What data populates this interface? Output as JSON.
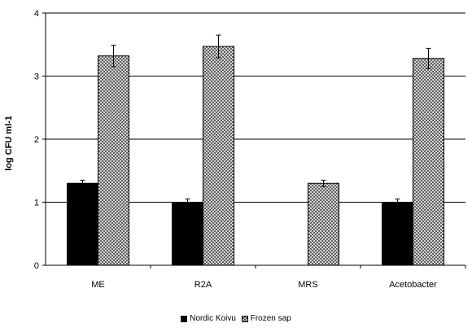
{
  "chart_data": {
    "type": "bar",
    "categories": [
      "ME",
      "R2A",
      "MRS",
      "Acetobacter"
    ],
    "series": [
      {
        "name": "Nordic Koivu",
        "values": [
          1.3,
          1.0,
          null,
          1.0
        ],
        "errors": [
          0.05,
          0.05,
          null,
          0.05
        ],
        "color": "#000000"
      },
      {
        "name": "Frozen sap",
        "values": [
          3.32,
          3.47,
          1.3,
          3.28
        ],
        "errors": [
          0.17,
          0.18,
          0.05,
          0.16
        ],
        "color": "#bdbdbd",
        "fill_style": "crosshatch"
      }
    ],
    "ylabel": "log CFU ml-1",
    "xlabel": "",
    "ylim": [
      0,
      4
    ],
    "yticks": [
      "0",
      "1",
      "2",
      "3",
      "4"
    ],
    "grid": true,
    "legend_position": "bottom"
  }
}
